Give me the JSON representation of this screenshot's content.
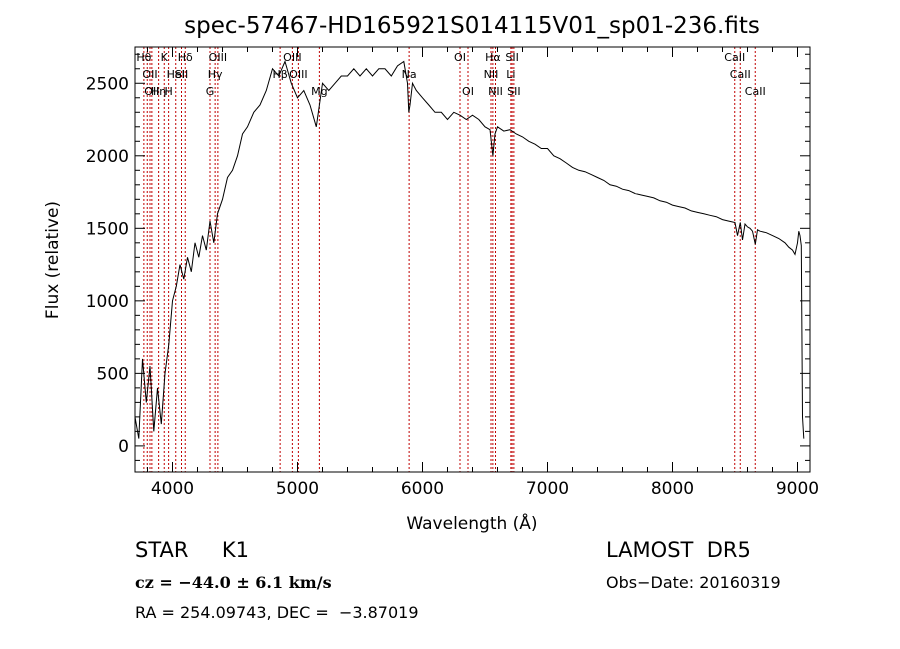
{
  "chart_data": {
    "type": "line",
    "title": "spec-57467-HD165921S014115V01_sp01-236.fits",
    "xlabel": "Wavelength (Å)",
    "ylabel": "Flux (relative)",
    "xlim": [
      3700,
      9100
    ],
    "ylim": [
      -180,
      2750
    ],
    "xticks": [
      4000,
      5000,
      6000,
      7000,
      8000,
      9000
    ],
    "yticks": [
      0,
      500,
      1000,
      1500,
      2000,
      2500
    ],
    "grid": false,
    "series": [
      {
        "x": [
          3700,
          3730,
          3760,
          3790,
          3820,
          3850,
          3880,
          3910,
          3940,
          3970,
          4000,
          4030,
          4060,
          4090,
          4120,
          4150,
          4180,
          4210,
          4240,
          4270,
          4300,
          4330,
          4360,
          4400,
          4440,
          4480,
          4520,
          4560,
          4600,
          4650,
          4700,
          4750,
          4800,
          4850,
          4900,
          4950,
          5000,
          5050,
          5100,
          5150,
          5200,
          5250,
          5300,
          5350,
          5400,
          5450,
          5500,
          5550,
          5600,
          5650,
          5700,
          5750,
          5800,
          5850,
          5880,
          5890,
          5900,
          5920,
          5950,
          6000,
          6050,
          6100,
          6150,
          6200,
          6250,
          6300,
          6350,
          6400,
          6450,
          6500,
          6540,
          6563,
          6580,
          6600,
          6650,
          6700,
          6750,
          6800,
          6850,
          6900,
          6950,
          7000,
          7050,
          7100,
          7150,
          7200,
          7250,
          7300,
          7350,
          7400,
          7450,
          7500,
          7550,
          7600,
          7650,
          7700,
          7750,
          7800,
          7850,
          7900,
          7950,
          8000,
          8050,
          8100,
          8150,
          8200,
          8250,
          8300,
          8350,
          8400,
          8450,
          8500,
          8520,
          8542,
          8560,
          8580,
          8600,
          8620,
          8640,
          8662,
          8680,
          8700,
          8750,
          8800,
          8850,
          8900,
          8930,
          8960,
          8980,
          9000,
          9010,
          9020,
          9030,
          9040,
          9050
        ],
        "y": [
          200,
          50,
          600,
          300,
          550,
          100,
          400,
          150,
          500,
          700,
          1000,
          1100,
          1250,
          1150,
          1300,
          1200,
          1400,
          1300,
          1450,
          1350,
          1550,
          1400,
          1600,
          1700,
          1850,
          1900,
          2000,
          2150,
          2200,
          2300,
          2350,
          2450,
          2600,
          2550,
          2650,
          2500,
          2400,
          2450,
          2350,
          2200,
          2500,
          2450,
          2500,
          2550,
          2550,
          2600,
          2550,
          2600,
          2550,
          2600,
          2600,
          2550,
          2620,
          2650,
          2500,
          2300,
          2350,
          2500,
          2450,
          2400,
          2350,
          2300,
          2300,
          2250,
          2300,
          2280,
          2250,
          2280,
          2250,
          2200,
          2180,
          2000,
          2150,
          2200,
          2170,
          2180,
          2150,
          2130,
          2100,
          2080,
          2050,
          2050,
          2000,
          1980,
          1950,
          1920,
          1900,
          1890,
          1870,
          1850,
          1830,
          1800,
          1790,
          1770,
          1760,
          1740,
          1730,
          1720,
          1710,
          1690,
          1680,
          1660,
          1650,
          1640,
          1620,
          1610,
          1600,
          1590,
          1580,
          1560,
          1550,
          1540,
          1450,
          1540,
          1420,
          1530,
          1510,
          1500,
          1480,
          1390,
          1490,
          1480,
          1470,
          1450,
          1430,
          1400,
          1370,
          1350,
          1320,
          1400,
          1480,
          1450,
          1380,
          200,
          50
        ]
      }
    ],
    "lines": [
      {
        "x": 3771,
        "label": "Hθ",
        "row": 0
      },
      {
        "x": 3798,
        "label": "",
        "row": 0
      },
      {
        "x": 3820,
        "label": "OII",
        "row": 1
      },
      {
        "x": 3835,
        "label": "OII",
        "row": 2
      },
      {
        "x": 3889,
        "label": "Hη",
        "row": 2
      },
      {
        "x": 3934,
        "label": "K",
        "row": 0
      },
      {
        "x": 3969,
        "label": "H",
        "row": 2
      },
      {
        "x": 4026,
        "label": "HeI",
        "row": 1
      },
      {
        "x": 4072,
        "label": "SII",
        "row": 1
      },
      {
        "x": 4102,
        "label": "Hδ",
        "row": 0
      },
      {
        "x": 4300,
        "label": "G",
        "row": 2
      },
      {
        "x": 4341,
        "label": "Hγ",
        "row": 1
      },
      {
        "x": 4363,
        "label": "OIII",
        "row": 0
      },
      {
        "x": 4861,
        "label": "Hβ",
        "row": 1
      },
      {
        "x": 4959,
        "label": "OIII",
        "row": 0
      },
      {
        "x": 5007,
        "label": "OIII",
        "row": 1
      },
      {
        "x": 5175,
        "label": "Mg",
        "row": 2
      },
      {
        "x": 5893,
        "label": "Na",
        "row": 1
      },
      {
        "x": 6300,
        "label": "OI",
        "row": 0
      },
      {
        "x": 6364,
        "label": "OI",
        "row": 2
      },
      {
        "x": 6548,
        "label": "NII",
        "row": 1
      },
      {
        "x": 6563,
        "label": "Hα",
        "row": 0
      },
      {
        "x": 6584,
        "label": "NII",
        "row": 2
      },
      {
        "x": 6707,
        "label": "Li",
        "row": 1
      },
      {
        "x": 6717,
        "label": "SII",
        "row": 0
      },
      {
        "x": 6731,
        "label": "SII",
        "row": 2
      },
      {
        "x": 8498,
        "label": "CaII",
        "row": 0
      },
      {
        "x": 8542,
        "label": "CaII",
        "row": 1
      },
      {
        "x": 8662,
        "label": "CaII",
        "row": 2
      }
    ]
  },
  "info": {
    "class_text": "STAR     K1",
    "survey": "LAMOST  DR5",
    "cz": "cz = −44.0 ± 6.1 km/s",
    "obs_date": "Obs−Date: 20160319",
    "radec": "RA = 254.09743, DEC =  −3.87019"
  },
  "colors": {
    "spectrum": "#000000",
    "line_markers": "#c00000",
    "axes": "#000000"
  }
}
